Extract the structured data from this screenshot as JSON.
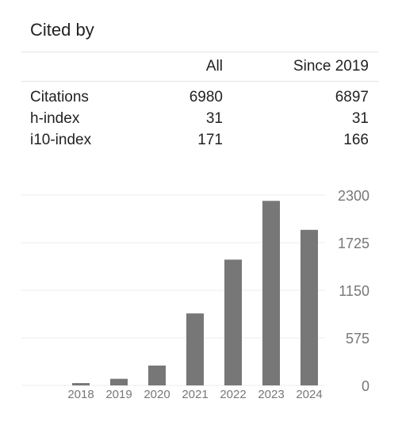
{
  "title": "Cited by",
  "table": {
    "headers": {
      "all": "All",
      "since": "Since 2019"
    },
    "rows": [
      {
        "label": "Citations",
        "all": "6980",
        "since": "6897"
      },
      {
        "label": "h-index",
        "all": "31",
        "since": "31"
      },
      {
        "label": "i10-index",
        "all": "171",
        "since": "166"
      }
    ]
  },
  "colors": {
    "bar": "#777777",
    "grid": "#eeeeee",
    "divider": "#e4e4e4"
  },
  "chart_data": {
    "type": "bar",
    "categories": [
      "2018",
      "2019",
      "2020",
      "2021",
      "2022",
      "2023",
      "2024"
    ],
    "values": [
      28,
      80,
      240,
      870,
      1520,
      2230,
      1880
    ],
    "ylim": [
      0,
      2300
    ],
    "yticks": [
      0,
      575,
      1150,
      1725,
      2300
    ],
    "ytick_labels": [
      "0",
      "575",
      "1150",
      "1725",
      "2300"
    ],
    "grid": true,
    "y_axis_side": "right"
  }
}
